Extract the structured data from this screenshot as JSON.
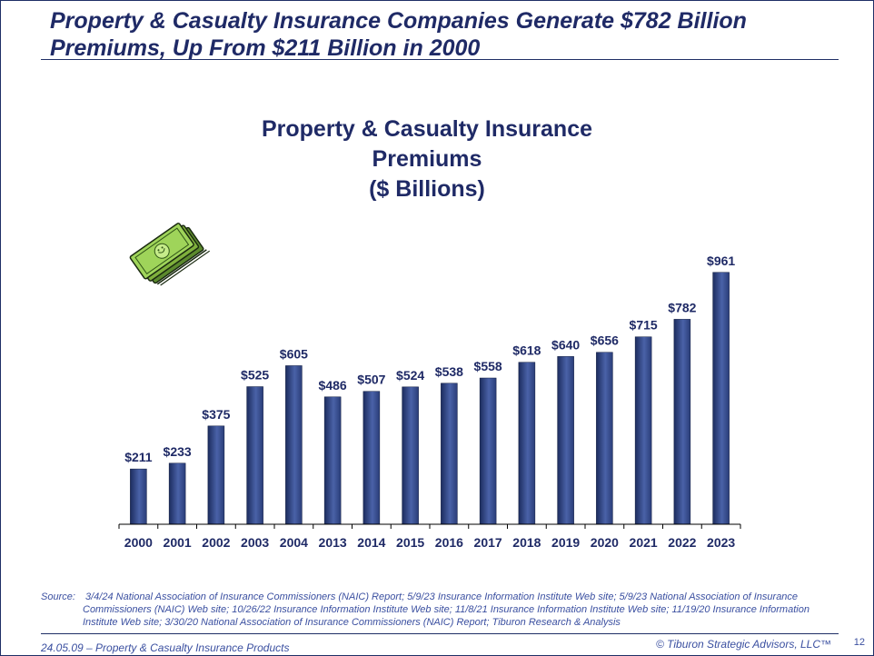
{
  "slide": {
    "title_line1": "Property & Casualty Insurance Companies Generate $782 Billion",
    "title_line2": "Premiums, Up From $211 Billion in 2000",
    "source_label": "Source:",
    "source_text": "3/4/24 National Association of Insurance Commissioners (NAIC) Report; 5/9/23 Insurance Information Institute Web site; 5/9/23 National Association of Insurance Commissioners (NAIC) Web site; 10/26/22 Insurance Information Institute Web site; 11/8/21 Insurance Information Institute Web site; 11/19/20 Insurance Information Institute Web site; 3/30/20 National Association of Insurance Commissioners (NAIC) Report; Tiburon Research & Analysis",
    "footer_left": "24.05.09 – Property & Casualty Insurance Products",
    "footer_right": "© Tiburon Strategic Advisors, LLC™",
    "page_number": "12",
    "icon": "money-stack-icon"
  },
  "colors": {
    "title": "#1f2a66",
    "bar_dark": "#1c2c5e",
    "bar_light": "#5a72b8",
    "source_text": "#3a4fa0"
  },
  "chart_data": {
    "type": "bar",
    "title_lines": [
      "Property & Casualty Insurance",
      "Premiums",
      "($ Billions)"
    ],
    "categories": [
      "2000",
      "2001",
      "2002",
      "2003",
      "2004",
      "2013",
      "2014",
      "2015",
      "2016",
      "2017",
      "2018",
      "2019",
      "2020",
      "2021",
      "2022",
      "2023"
    ],
    "values": [
      211,
      233,
      375,
      525,
      605,
      486,
      507,
      524,
      538,
      558,
      618,
      640,
      656,
      715,
      782,
      961
    ],
    "value_labels": [
      "$211",
      "$233",
      "$375",
      "$525",
      "$605",
      "$486",
      "$507",
      "$524",
      "$538",
      "$558",
      "$618",
      "$640",
      "$656",
      "$715",
      "$782",
      "$961"
    ],
    "xlabel": "",
    "ylabel": "",
    "ylim": [
      0,
      1000
    ],
    "grid": false,
    "legend": "none"
  }
}
